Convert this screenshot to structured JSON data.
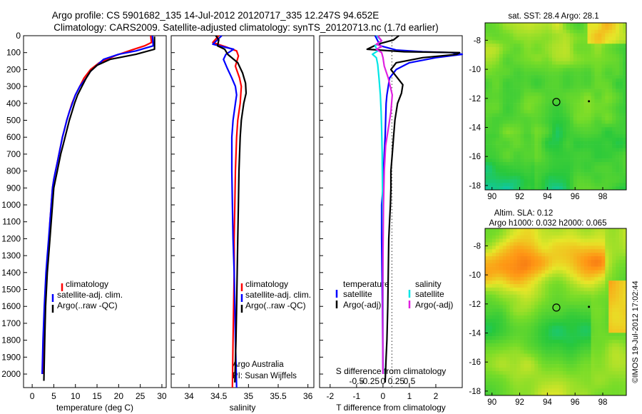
{
  "header": {
    "line1": "Argo profile: CS 5901682_135 14-Jul-2012 20120717_335 12.247S 94.652E",
    "line2": "Climatology: CARS2009. Satellite-adjusted climatology: synTS_20120713.nc (1.7d earlier)"
  },
  "colors": {
    "climatology": "#ff0000",
    "satellite": "#0000ff",
    "argo": "#000000",
    "sal_satellite": "#00e6e6",
    "sal_argo": "#e020e0"
  },
  "chart_data": [
    {
      "type": "line",
      "id": "temperature",
      "xlabel": "temperature (deg C)",
      "ylabel": "",
      "xlim": [
        -2,
        31
      ],
      "ylim": [
        2080,
        0
      ],
      "xticks": [
        0,
        5,
        10,
        15,
        20,
        25,
        30
      ],
      "yticks": [
        0,
        100,
        200,
        300,
        400,
        500,
        600,
        700,
        800,
        900,
        1000,
        1100,
        1200,
        1300,
        1400,
        1500,
        1600,
        1700,
        1800,
        1900,
        2000
      ],
      "legend": [
        "climatology",
        "satellite-adj. clim.",
        "Argo(..raw -QC)"
      ],
      "series": [
        {
          "name": "climatology",
          "color": "#ff0000",
          "x": [
            27.4,
            27.6,
            26,
            23,
            19.5,
            15.5,
            13.5,
            12,
            11,
            10,
            9.2,
            8.6,
            8.0,
            7.5,
            7.0,
            6.6,
            6.2,
            5.8,
            5.4,
            5.0,
            4.7,
            4.4,
            4.1,
            3.9,
            3.6,
            3.4,
            3.2,
            3.0,
            2.8,
            2.6
          ],
          "y": [
            0,
            40,
            60,
            85,
            115,
            160,
            200,
            250,
            300,
            350,
            400,
            450,
            500,
            550,
            600,
            650,
            700,
            750,
            800,
            850,
            900,
            1000,
            1100,
            1200,
            1300,
            1400,
            1500,
            1600,
            1800,
            2000
          ]
        },
        {
          "name": "satellite-adj. clim.",
          "color": "#0000ff",
          "x": [
            27.8,
            28,
            24,
            20,
            16.5,
            15,
            13.5,
            12.5,
            11,
            10,
            9.3,
            8.6,
            8.0,
            7.5,
            7.0,
            6.6,
            6.2,
            5.8,
            5.4,
            5.0,
            4.7,
            4.4,
            4.1,
            3.8,
            3.5,
            3.2,
            3.0,
            2.8,
            2.5,
            2.3
          ],
          "y": [
            0,
            60,
            90,
            110,
            140,
            175,
            210,
            250,
            300,
            350,
            400,
            450,
            500,
            550,
            600,
            650,
            700,
            750,
            800,
            850,
            900,
            1000,
            1100,
            1200,
            1300,
            1400,
            1500,
            1600,
            1800,
            2000
          ]
        },
        {
          "name": "Argo(..raw -QC)",
          "color": "#000000",
          "x": [
            28.3,
            28.3,
            24,
            18,
            15,
            13.5,
            12.5,
            11.5,
            10.5,
            9.8,
            9.2,
            8.6,
            8.1,
            7.6,
            7.1,
            6.6,
            6.2,
            5.8,
            5.4,
            5.0,
            4.7,
            4.4,
            4.1,
            3.8,
            3.5,
            3.3,
            3.1,
            2.9,
            2.7
          ],
          "y": [
            5,
            80,
            110,
            140,
            175,
            210,
            250,
            300,
            350,
            400,
            450,
            500,
            550,
            600,
            650,
            700,
            750,
            800,
            850,
            900,
            1000,
            1100,
            1200,
            1300,
            1400,
            1500,
            1600,
            1800,
            2040
          ]
        }
      ]
    },
    {
      "type": "line",
      "id": "salinity",
      "xlabel": "salinity",
      "ylabel": "",
      "xlim": [
        33.7,
        36.1
      ],
      "ylim": [
        2080,
        0
      ],
      "xticks": [
        34,
        34.5,
        35,
        35.5,
        36
      ],
      "legend": [
        "climatology",
        "satellite-adj. clim.",
        "Argo(..raw -QC)"
      ],
      "annotation": [
        "Argo Australia",
        "PI: Susan Wijffels"
      ],
      "series": [
        {
          "name": "climatology",
          "color": "#ff0000",
          "x": [
            34.5,
            34.4,
            34.65,
            34.8,
            34.83,
            34.78,
            34.85,
            34.88,
            34.87,
            34.86,
            34.82,
            34.8,
            34.78,
            34.77,
            34.76,
            34.76,
            34.75,
            34.74,
            34.73
          ],
          "y": [
            0,
            40,
            70,
            90,
            120,
            180,
            250,
            300,
            350,
            400,
            500,
            600,
            800,
            1000,
            1200,
            1400,
            1600,
            1800,
            2080
          ]
        },
        {
          "name": "satellite-adj. clim.",
          "color": "#0000ff",
          "x": [
            34.55,
            34.4,
            34.75,
            34.62,
            34.58,
            34.64,
            34.72,
            34.78,
            34.8,
            34.78,
            34.74,
            34.72,
            34.72,
            34.73,
            34.74,
            34.76,
            34.77,
            34.78,
            34.8
          ],
          "y": [
            0,
            50,
            80,
            110,
            140,
            190,
            250,
            300,
            350,
            400,
            500,
            600,
            800,
            1000,
            1200,
            1400,
            1600,
            1800,
            2080
          ]
        },
        {
          "name": "Argo(..raw -QC)",
          "color": "#000000",
          "x": [
            34.45,
            34.5,
            34.48,
            34.6,
            34.65,
            34.82,
            34.9,
            34.95,
            34.96,
            34.92,
            34.88,
            34.86,
            34.84,
            34.83,
            34.82,
            34.81,
            34.8,
            34.79,
            34.77
          ],
          "y": [
            0,
            25,
            60,
            80,
            110,
            160,
            220,
            280,
            340,
            400,
            500,
            600,
            800,
            1000,
            1200,
            1400,
            1600,
            1800,
            2050
          ]
        }
      ]
    },
    {
      "type": "line",
      "id": "difference",
      "xlabel": "T difference from climatology",
      "xlabel2": "S difference from climatology",
      "xlim": [
        -2.4,
        3
      ],
      "ylim": [
        2080,
        0
      ],
      "xticks": [
        -2,
        -1,
        0,
        1,
        2
      ],
      "sticks": [
        -0.5,
        -0.25,
        0,
        0.25,
        0.5
      ],
      "legend_titles": [
        "temperature",
        "salinity"
      ],
      "legend_left": [
        "satellite",
        "Argo(-adj)"
      ],
      "legend_right": [
        "satellite",
        "Argo(-adj)"
      ],
      "series": [
        {
          "name": "temperature satellite",
          "color": "#0000ff",
          "x": [
            -0.3,
            -0.2,
            -0.1,
            0.5,
            1.5,
            2.6,
            3.0,
            2.0,
            1.0,
            0.5,
            0.25,
            0.2,
            0.15,
            0.12,
            0.1,
            0.08,
            0.05,
            0.02,
            0,
            -0.05,
            -0.05,
            -0.02,
            0
          ],
          "y": [
            0,
            30,
            60,
            85,
            95,
            100,
            110,
            130,
            160,
            200,
            250,
            300,
            350,
            400,
            500,
            600,
            700,
            800,
            900,
            1000,
            1200,
            1600,
            2000
          ]
        },
        {
          "name": "temperature Argo(-adj)",
          "color": "#000000",
          "x": [
            0.6,
            0.4,
            -0.2,
            -0.6,
            0.8,
            2.9,
            2.8,
            1.5,
            0.5,
            0.3,
            0.5,
            0.75,
            0.7,
            0.55,
            0.45,
            0.4,
            0.35,
            0.3,
            0.3,
            0.28,
            0.25,
            0.22,
            0.2,
            0.18,
            0.15,
            0.12,
            0.08
          ],
          "y": [
            0,
            25,
            50,
            80,
            95,
            100,
            110,
            130,
            160,
            200,
            240,
            290,
            340,
            400,
            500,
            600,
            700,
            800,
            900,
            1000,
            1100,
            1200,
            1400,
            1600,
            1800,
            1900,
            2050
          ]
        },
        {
          "name": "salinity satellite",
          "color": "#00e6e6",
          "x": [
            -0.25,
            -0.05,
            -0.3,
            -0.2,
            -0.4,
            -0.25,
            -0.2,
            -0.15,
            -0.1,
            -0.07,
            -0.05,
            -0.03,
            -0.02,
            -0.01,
            0,
            0,
            0,
            0,
            0.01
          ],
          "y": [
            0,
            30,
            60,
            90,
            110,
            130,
            170,
            250,
            350,
            450,
            550,
            700,
            850,
            1000,
            1200,
            1400,
            1600,
            1800,
            2000
          ]
        },
        {
          "name": "salinity Argo(-adj)",
          "color": "#e020e0",
          "x": [
            -0.2,
            -0.05,
            -0.25,
            -0.05,
            -0.25,
            -0.05,
            0.0,
            0.05,
            0.2,
            0.35,
            0.3,
            0.2,
            0.1,
            0.05,
            0.02,
            0,
            -0.01,
            0
          ],
          "y": [
            0,
            30,
            50,
            65,
            80,
            100,
            130,
            180,
            250,
            350,
            450,
            550,
            650,
            800,
            1000,
            1300,
            1600,
            2000
          ]
        }
      ]
    },
    {
      "type": "heatmap",
      "id": "sst-map",
      "title": "sat. SST: 28.4  Argo: 28.1",
      "xticks": [
        90,
        92,
        94,
        96,
        98
      ],
      "yticks": [
        -8,
        -10,
        -12,
        -14,
        -16,
        -18
      ],
      "xlim": [
        89.5,
        99.7
      ],
      "ylim": [
        -18.3,
        -6.8
      ],
      "marker": {
        "lon": 94.65,
        "lat": -12.25
      },
      "marker2": {
        "lon": 97.0,
        "lat": -12.2
      }
    },
    {
      "type": "heatmap",
      "id": "sla-map",
      "title": "Altim. SLA: 0.12",
      "title2": "Argo h1000: 0.032  h2000: 0.065",
      "xticks": [
        90,
        92,
        94,
        96,
        98
      ],
      "yticks": [
        -8,
        -10,
        -12,
        -14,
        -16,
        -18
      ],
      "xlim": [
        89.5,
        99.7
      ],
      "ylim": [
        -18.3,
        -6.8
      ],
      "marker": {
        "lon": 94.65,
        "lat": -12.25
      },
      "marker2": {
        "lon": 97.0,
        "lat": -12.2
      }
    }
  ],
  "stamp": "©IMOS 19-Jul-2012 17:02:44"
}
